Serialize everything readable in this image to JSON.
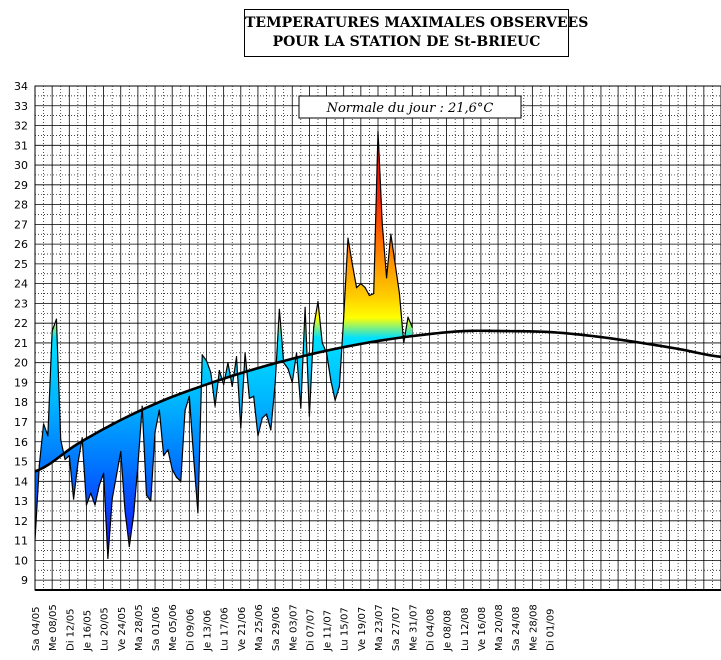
{
  "title": {
    "line1": "TEMPERATURES MAXIMALES OBSERVEES",
    "line2": "POUR LA STATION DE St-BRIEUC"
  },
  "chart_data": {
    "type": "area",
    "title": "TEMPERATURES MAXIMALES OBSERVEES POUR LA STATION DE St-BRIEUC",
    "annotation": "Normale du jour : 21,6°C",
    "ylim": [
      8.5,
      34
    ],
    "yticks": [
      9,
      10,
      11,
      12,
      13,
      14,
      15,
      16,
      17,
      18,
      19,
      20,
      21,
      22,
      23,
      24,
      25,
      26,
      27,
      28,
      29,
      30,
      31,
      32,
      33,
      34
    ],
    "xlim": [
      0,
      160
    ],
    "xtick_step_days": 4,
    "xtick_labels": [
      "Sa 04/05",
      "Me 08/05",
      "Di 12/05",
      "Je 16/05",
      "Lu 20/05",
      "Ve 24/05",
      "Ma 28/05",
      "Sa 01/06",
      "Me 05/06",
      "Di 09/06",
      "Je 13/06",
      "Lu 17/06",
      "Ve 21/06",
      "Ma 25/06",
      "Sa 29/06",
      "Me 03/07",
      "Di 07/07",
      "Je 11/07",
      "Lu 15/07",
      "Ve 19/07",
      "Ma 23/07",
      "Sa 27/07",
      "Me 31/07",
      "Di 04/08",
      "Je 08/08",
      "Lu 12/08",
      "Ve 16/08",
      "Ma 20/08",
      "Sa 24/08",
      "Me 28/08",
      "Di 01/09"
    ],
    "series": [
      {
        "name": "observed_max",
        "start_day": 0,
        "values": [
          11.0,
          14.8,
          16.9,
          16.3,
          21.6,
          22.2,
          16.1,
          15.1,
          15.3,
          13.1,
          14.9,
          16.2,
          12.8,
          13.4,
          12.8,
          13.8,
          14.4,
          10.1,
          13.1,
          14.3,
          15.5,
          12.5,
          10.7,
          12.3,
          14.8,
          17.8,
          13.3,
          13.0,
          16.5,
          17.6,
          15.3,
          15.6,
          14.6,
          14.2,
          14.0,
          17.6,
          18.3,
          15.2,
          12.4,
          20.4,
          20.1,
          19.5,
          17.8,
          19.6,
          18.9,
          20.0,
          18.8,
          20.3,
          16.7,
          20.5,
          18.2,
          18.3,
          16.3,
          17.2,
          17.4,
          16.6,
          18.9,
          22.7,
          20.0,
          19.7,
          19.0,
          20.5,
          17.7,
          22.8,
          17.3,
          21.8,
          23.1,
          21.0,
          20.5,
          19.1,
          18.1,
          18.8,
          22.3,
          26.3,
          25.0,
          23.8,
          24.0,
          23.8,
          23.4,
          23.5,
          31.7,
          27.0,
          24.3,
          26.5,
          25.0,
          23.5,
          21.0,
          22.3,
          21.8
        ]
      },
      {
        "name": "daily_normal",
        "x": [
          0,
          10,
          20,
          30,
          40,
          50,
          60,
          70,
          80,
          90,
          100,
          110,
          120,
          130,
          140,
          150,
          160
        ],
        "values": [
          14.5,
          15.9,
          17.1,
          18.1,
          18.9,
          19.6,
          20.2,
          20.7,
          21.1,
          21.4,
          21.6,
          21.6,
          21.55,
          21.35,
          21.05,
          20.7,
          20.3
        ]
      }
    ]
  }
}
